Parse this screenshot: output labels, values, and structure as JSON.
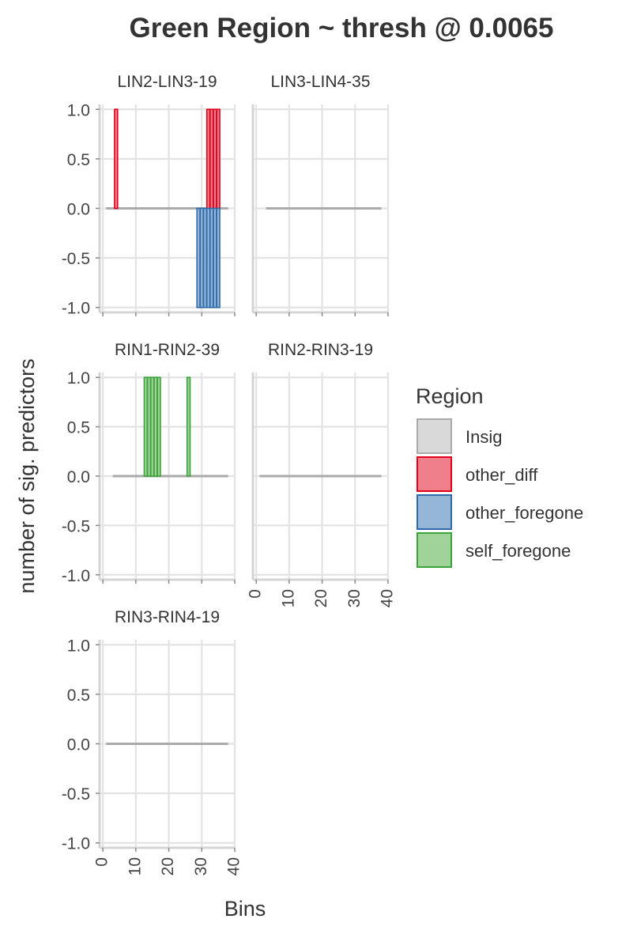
{
  "chart_data": {
    "type": "bar",
    "title": "Green Region ~ thresh @ 0.0065",
    "xlabel": "Bins",
    "ylabel": "number of sig. predictors",
    "xlim": [
      -1,
      40
    ],
    "ylim": [
      -1.05,
      1.05
    ],
    "x_ticks": [
      0,
      10,
      20,
      30,
      40
    ],
    "y_ticks": [
      1.0,
      0.5,
      0.0,
      -0.5,
      -1.0
    ],
    "y_tick_labels": [
      "1.0",
      "0.5",
      "0.0",
      "-0.5",
      "-1.0"
    ],
    "grid": true,
    "legend": {
      "title": "Region",
      "position": "right",
      "entries": [
        "Insig",
        "other_diff",
        "other_foregone",
        "self_foregone"
      ]
    },
    "colors": {
      "Insig": {
        "fill": "#d9d9d9",
        "stroke": "#aaaaaa"
      },
      "other_diff": {
        "fill": "#ef7f8a",
        "stroke": "#e3001b"
      },
      "other_foregone": {
        "fill": "#96b6d8",
        "stroke": "#2f6aaa"
      },
      "self_foregone": {
        "fill": "#9fd39a",
        "stroke": "#3ca23a"
      }
    },
    "facets": [
      {
        "label": "LIN2-LIN3-19",
        "x_range": [
          1,
          38
        ],
        "bars": [
          {
            "region": "other_diff",
            "x": 4,
            "y": 1
          },
          {
            "region": "other_diff",
            "x": 32,
            "y": 1
          },
          {
            "region": "other_diff",
            "x": 33,
            "y": 1
          },
          {
            "region": "other_diff",
            "x": 34,
            "y": 1
          },
          {
            "region": "other_diff",
            "x": 35,
            "y": 1
          },
          {
            "region": "other_foregone",
            "x": 29,
            "y": -1
          },
          {
            "region": "other_foregone",
            "x": 30,
            "y": -1
          },
          {
            "region": "other_foregone",
            "x": 31,
            "y": -1
          },
          {
            "region": "other_foregone",
            "x": 32,
            "y": -1
          },
          {
            "region": "other_foregone",
            "x": 33,
            "y": -1
          },
          {
            "region": "other_foregone",
            "x": 34,
            "y": -1
          },
          {
            "region": "other_foregone",
            "x": 35,
            "y": -1
          }
        ]
      },
      {
        "label": "LIN3-LIN4-35",
        "x_range": [
          3,
          38
        ],
        "bars": []
      },
      {
        "label": "RIN1-RIN2-39",
        "x_range": [
          3,
          38
        ],
        "bars": [
          {
            "region": "self_foregone",
            "x": 13,
            "y": 1
          },
          {
            "region": "self_foregone",
            "x": 14,
            "y": 1
          },
          {
            "region": "self_foregone",
            "x": 15,
            "y": 1
          },
          {
            "region": "self_foregone",
            "x": 16,
            "y": 1
          },
          {
            "region": "self_foregone",
            "x": 17,
            "y": 1
          },
          {
            "region": "self_foregone",
            "x": 26,
            "y": 1
          }
        ]
      },
      {
        "label": "RIN2-RIN3-19",
        "x_range": [
          1,
          38
        ],
        "bars": []
      },
      {
        "label": "RIN3-RIN4-19",
        "x_range": [
          1,
          38
        ],
        "bars": []
      }
    ]
  }
}
